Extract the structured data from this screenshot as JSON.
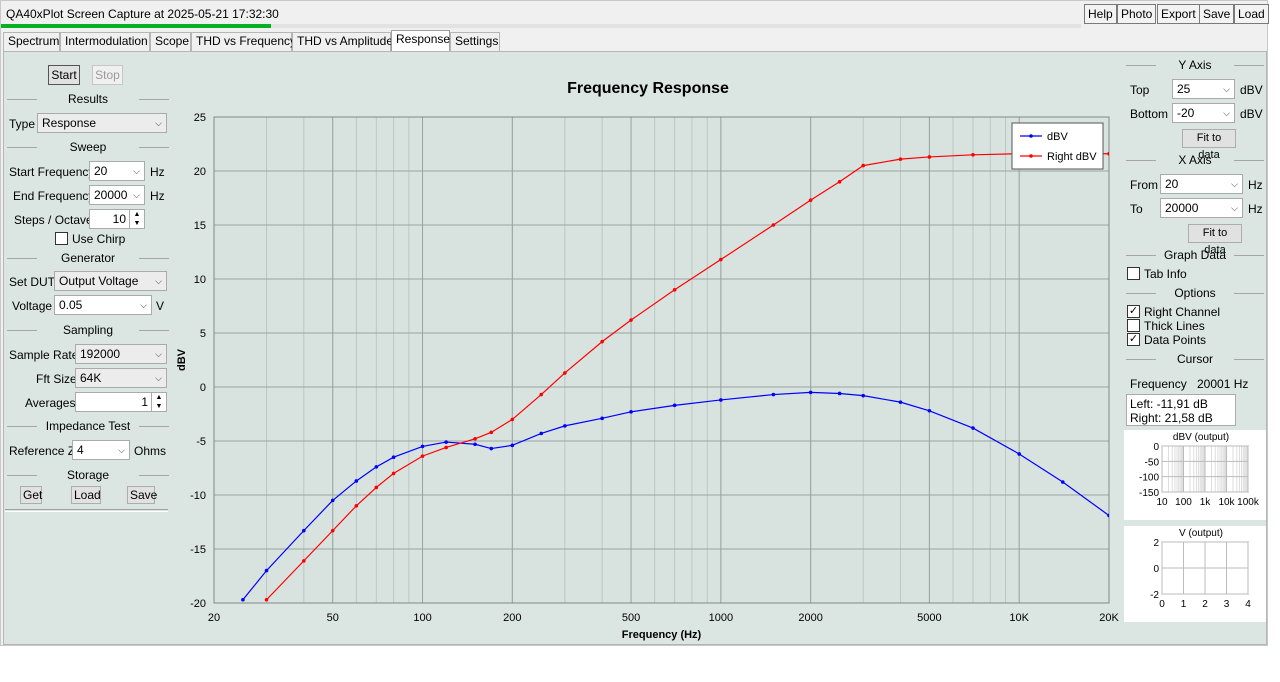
{
  "window": {
    "title": "QA40xPlot Screen Capture at 2025-05-21 17:32:30",
    "progress": 0.25,
    "buttons": [
      "Help",
      "Photo",
      "Export",
      "Save",
      "Load"
    ]
  },
  "tabs": [
    "Spectrum",
    "Intermodulation",
    "Scope",
    "THD vs Frequency",
    "THD vs Amplitude",
    "Response",
    "Settings"
  ],
  "active_tab": "Response",
  "left": {
    "start": "Start",
    "stop": "Stop",
    "results": {
      "title": "Results",
      "type_label": "Type",
      "type_value": "Response"
    },
    "sweep": {
      "title": "Sweep",
      "start_label": "Start Frequency",
      "start_value": "20",
      "start_unit": "Hz",
      "end_label": "End Frequency",
      "end_value": "20000",
      "end_unit": "Hz",
      "steps_label": "Steps / Octave",
      "steps_value": "10",
      "chirp_label": "Use Chirp",
      "chirp_checked": false
    },
    "generator": {
      "title": "Generator",
      "dut_label": "Set DUT",
      "dut_value": "Output Voltage",
      "voltage_label": "Voltage",
      "voltage_value": "0.05",
      "voltage_unit": "V"
    },
    "sampling": {
      "title": "Sampling",
      "rate_label": "Sample Rate",
      "rate_value": "192000",
      "fft_label": "Fft Size",
      "fft_value": "64K",
      "avg_label": "Averages",
      "avg_value": "1"
    },
    "impedance": {
      "title": "Impedance Test",
      "refz_label": "Reference Z",
      "refz_value": "4",
      "refz_unit": "Ohms"
    },
    "storage": {
      "title": "Storage",
      "get": "Get",
      "load": "Load",
      "save": "Save"
    }
  },
  "right": {
    "yaxis": {
      "title": "Y Axis",
      "top_label": "Top",
      "top_value": "25",
      "top_unit": "dBV",
      "bottom_label": "Bottom",
      "bottom_value": "-20",
      "bottom_unit": "dBV",
      "fit": "Fit to data"
    },
    "xaxis": {
      "title": "X Axis",
      "from_label": "From",
      "from_value": "20",
      "from_unit": "Hz",
      "to_label": "To",
      "to_value": "20000",
      "to_unit": "Hz",
      "fit": "Fit to data"
    },
    "graph_data": {
      "title": "Graph Data",
      "tab_info": "Tab Info",
      "tab_info_checked": false
    },
    "options": {
      "title": "Options",
      "items": [
        {
          "label": "Right Channel",
          "checked": true
        },
        {
          "label": "Thick Lines",
          "checked": false
        },
        {
          "label": "Data Points",
          "checked": true
        }
      ]
    },
    "cursor": {
      "title": "Cursor",
      "freq_label": "Frequency",
      "freq_value": "20001 Hz",
      "left_text": "Left: -11,91 dB",
      "right_text": "Right: 21,58 dB"
    },
    "mini1": {
      "title": "dBV (output)",
      "yticks": [
        "0",
        "-50",
        "-100",
        "-150"
      ],
      "xticks": [
        "10",
        "100",
        "1k",
        "10k",
        "100k"
      ]
    },
    "mini2": {
      "title": "V (output)",
      "yticks": [
        "2",
        "0",
        "-2"
      ],
      "xticks": [
        "0",
        "1",
        "2",
        "3",
        "4"
      ]
    }
  },
  "chart_data": {
    "type": "line",
    "title": "Frequency Response",
    "xlabel": "Frequency (Hz)",
    "ylabel": "dBV",
    "xscale": "log",
    "xlim": [
      20,
      20000
    ],
    "ylim": [
      -20,
      25
    ],
    "grid": true,
    "legend": "top-right",
    "x_ticks": [
      20,
      50,
      100,
      200,
      500,
      1000,
      2000,
      5000,
      10000,
      20000
    ],
    "x_tick_labels": [
      "20",
      "50",
      "100",
      "200",
      "500",
      "1000",
      "2000",
      "5000",
      "10K",
      "20K"
    ],
    "y_ticks": [
      -20,
      -15,
      -10,
      -5,
      0,
      5,
      10,
      15,
      20,
      25
    ],
    "series": [
      {
        "name": "dBV",
        "color": "#0000ff",
        "x": [
          25,
          30,
          40,
          50,
          60,
          70,
          80,
          100,
          120,
          150,
          170,
          200,
          250,
          300,
          400,
          500,
          700,
          1000,
          1500,
          2000,
          2500,
          3000,
          4000,
          5000,
          7000,
          10000,
          14000,
          20000
        ],
        "y": [
          -19.7,
          -17.0,
          -13.3,
          -10.5,
          -8.7,
          -7.4,
          -6.5,
          -5.5,
          -5.1,
          -5.3,
          -5.7,
          -5.4,
          -4.3,
          -3.6,
          -2.9,
          -2.3,
          -1.7,
          -1.2,
          -0.7,
          -0.5,
          -0.6,
          -0.8,
          -1.4,
          -2.2,
          -3.8,
          -6.2,
          -8.8,
          -11.9
        ]
      },
      {
        "name": "Right dBV",
        "color": "#ff0000",
        "x": [
          30,
          40,
          50,
          60,
          70,
          80,
          100,
          120,
          150,
          170,
          200,
          250,
          300,
          400,
          500,
          700,
          1000,
          1500,
          2000,
          2500,
          3000,
          4000,
          5000,
          7000,
          10000,
          14000,
          20000
        ],
        "y": [
          -19.7,
          -16.1,
          -13.3,
          -11.0,
          -9.3,
          -8.0,
          -6.4,
          -5.6,
          -4.8,
          -4.2,
          -3.0,
          -0.7,
          1.3,
          4.2,
          6.2,
          9.0,
          11.8,
          15.0,
          17.3,
          19.0,
          20.5,
          21.1,
          21.3,
          21.5,
          21.6,
          21.6,
          21.6
        ]
      }
    ]
  }
}
